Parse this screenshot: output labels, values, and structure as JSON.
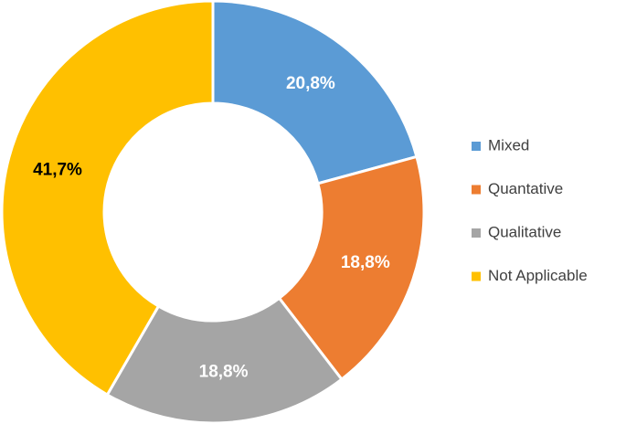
{
  "chart_data": {
    "type": "donut",
    "categories": [
      "Mixed",
      "Quantative",
      "Qualitative",
      "Not Applicable"
    ],
    "values": [
      20.8,
      18.8,
      18.8,
      41.7
    ],
    "value_labels": [
      "20,8%",
      "18,8%",
      "18,8%",
      "41,7%"
    ],
    "colors": [
      "#5b9bd5",
      "#ed7d31",
      "#a5a5a5",
      "#ffc000"
    ],
    "legend": "right"
  }
}
